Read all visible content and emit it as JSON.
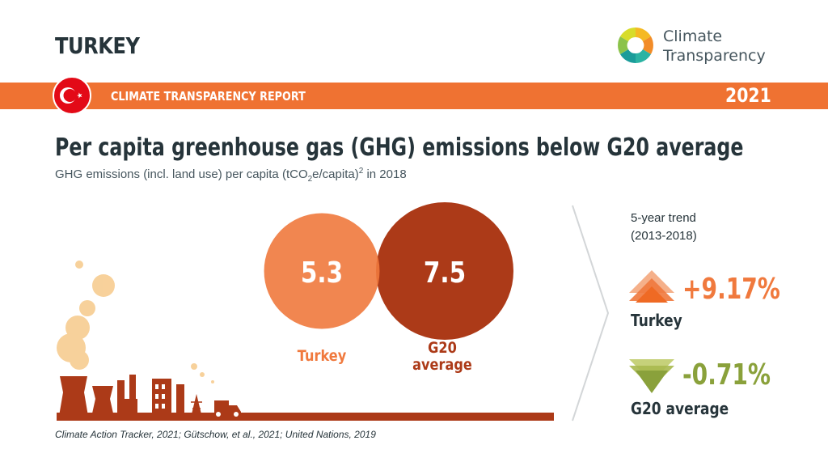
{
  "header": {
    "country": "TURKEY",
    "logo_line1": "Climate",
    "logo_line2": "Transparency"
  },
  "banner": {
    "title": "CLIMATE TRANSPARENCY REPORT",
    "year": "2021"
  },
  "headline": "Per capita greenhouse gas (GHG) emissions below G20 average",
  "subtitle": {
    "prefix": "GHG emissions (incl. land use) per capita (tCO",
    "sub": "2",
    "middle": "e/capita)",
    "sup": "2",
    "suffix": " in 2018"
  },
  "chart_data": {
    "type": "bubble",
    "categories": [
      "Turkey",
      "G20 average"
    ],
    "values": [
      5.3,
      7.5
    ],
    "value_labels": [
      "5.3",
      "7.5"
    ],
    "colors": [
      "#f0793d",
      "#ac3a18"
    ]
  },
  "trend": {
    "title_line1": "5-year trend",
    "title_line2": "(2013-2018)",
    "items": [
      {
        "name": "Turkey",
        "value": "+9.17%",
        "color": "#f0793d",
        "direction": "up"
      },
      {
        "name": "G20 average",
        "value": "-0.71%",
        "color": "#8aa13b",
        "direction": "down"
      }
    ]
  },
  "source": "Climate Action Tracker, 2021; Gütschow, et al., 2021; United Nations, 2019",
  "colors": {
    "accent": "#ef7232",
    "dark_red": "#ac3a18",
    "olive": "#8aa13b",
    "text": "#26343a"
  }
}
